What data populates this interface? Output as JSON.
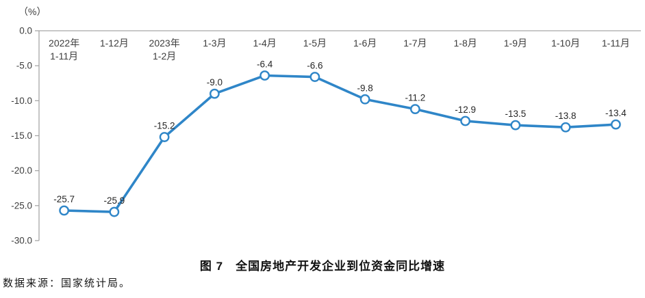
{
  "title": "图 7　全国房地产开发企业到位资金同比增速",
  "source": "数据来源：国家统计局。",
  "chart_data": {
    "type": "line",
    "unit_label": "（%）",
    "categories": [
      "2022年\n1-11月",
      "1-12月",
      "2023年\n1-2月",
      "1-3月",
      "1-4月",
      "1-5月",
      "1-6月",
      "1-7月",
      "1-8月",
      "1-9月",
      "1-10月",
      "1-11月"
    ],
    "values": [
      -25.7,
      -25.9,
      -15.2,
      -9.0,
      -6.4,
      -6.6,
      -9.8,
      -11.2,
      -12.9,
      -13.5,
      -13.8,
      -13.4
    ],
    "data_labels": [
      "-25.7",
      "-25.9",
      "-15.2",
      "-9.0",
      "-6.4",
      "-6.6",
      "-9.8",
      "-11.2",
      "-12.9",
      "-13.5",
      "-13.8",
      "-13.4"
    ],
    "yticks": [
      "0.0",
      "-5.0",
      "-10.0",
      "-15.0",
      "-20.0",
      "-25.0",
      "-30.0"
    ],
    "ylim": [
      -30,
      0
    ],
    "ytick_step": 5,
    "grid": false,
    "legend": "none",
    "colors": {
      "line": "#2f86c8",
      "marker_fill": "#ffffff",
      "axis": "#a6a6a6",
      "tick_label": "#3d3d3d",
      "category_label": "#3d3d3d",
      "data_label": "#262626"
    }
  }
}
